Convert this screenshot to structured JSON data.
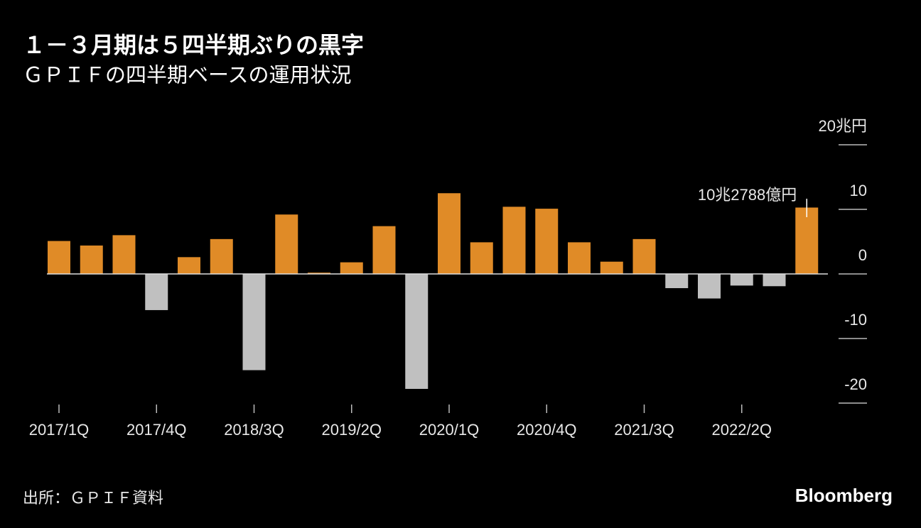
{
  "chart_data": {
    "type": "bar",
    "title": "１－３月期は５四半期ぶりの黒字",
    "subtitle": "ＧＰＩＦの四半期ベースの運用状況",
    "categories": [
      "2017/1Q",
      null,
      null,
      "2017/4Q",
      null,
      null,
      "2018/3Q",
      null,
      null,
      "2019/2Q",
      null,
      null,
      "2020/1Q",
      null,
      null,
      "2020/4Q",
      null,
      null,
      "2021/3Q",
      null,
      null,
      "2022/2Q",
      null,
      null
    ],
    "values": [
      5.1,
      4.4,
      6.0,
      -5.6,
      2.6,
      5.4,
      -14.9,
      9.2,
      0.2,
      1.8,
      7.4,
      -17.8,
      12.5,
      4.9,
      10.4,
      10.1,
      4.9,
      1.9,
      5.4,
      -2.2,
      -3.8,
      -1.8,
      -1.9,
      10.2788
    ],
    "positive_color": "#e08b27",
    "negative_color": "#c0c0c0",
    "ylim": [
      -20,
      20
    ],
    "yticks": [
      {
        "value": 20,
        "label": "20兆円"
      },
      10,
      0,
      -10,
      -20
    ],
    "annotation": "10兆2788億円",
    "source": "出所：ＧＰＩＦ資料",
    "brand": "Bloomberg"
  }
}
